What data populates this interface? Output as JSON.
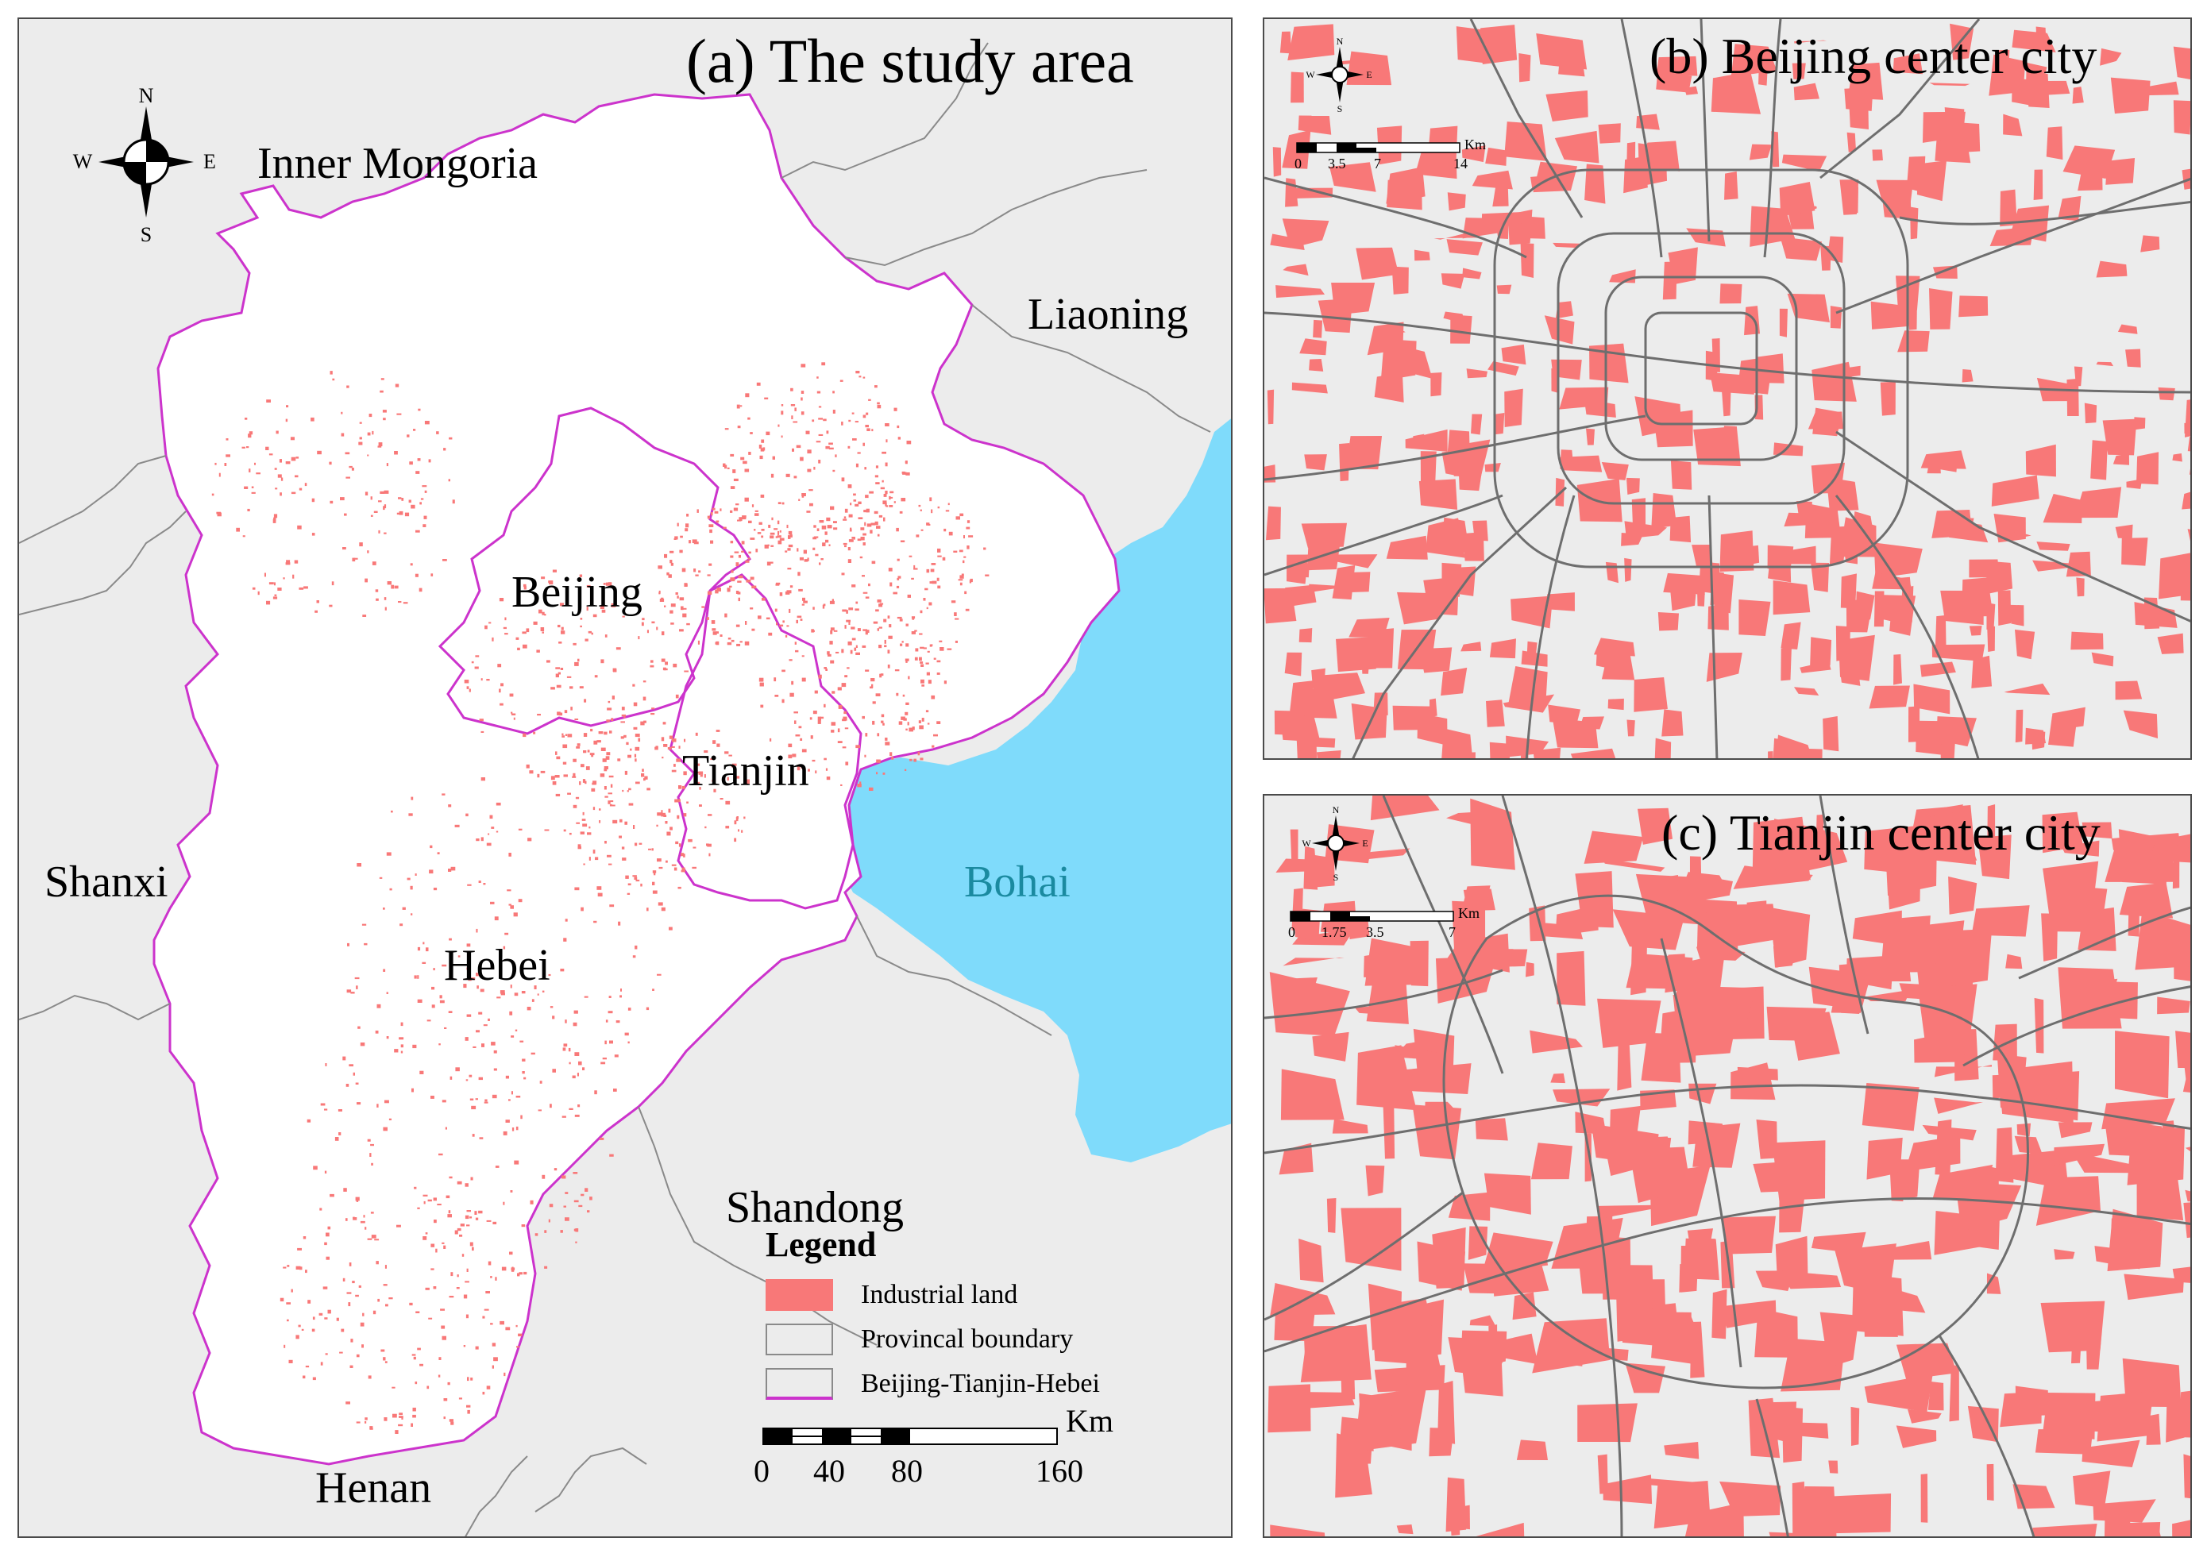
{
  "panel_a": {
    "title": "(a) The study area",
    "labels": {
      "inner_mongolia": "Inner Mongoria",
      "liaoning": "Liaoning",
      "beijing": "Beijing",
      "tianjin": "Tianjin",
      "hebei": "Hebei",
      "shanxi": "Shanxi",
      "bohai": "Bohai",
      "shandong": "Shandong",
      "henan": "Henan"
    },
    "compass": {
      "n": "N",
      "s": "S",
      "e": "E",
      "w": "W"
    },
    "legend": {
      "title": "Legend",
      "items": [
        {
          "label": "Industrial land",
          "color": "#f87878"
        },
        {
          "label": "Provincal boundary",
          "color": "#8a8a8a"
        },
        {
          "label": "Beijing-Tianjin-Hebei",
          "color": "#cc33cc"
        }
      ]
    },
    "scale": {
      "unit": "Km",
      "ticks": [
        "0",
        "40",
        "80",
        "160"
      ]
    }
  },
  "panel_b": {
    "title": "(b)  Beijing center city",
    "compass": {
      "n": "N",
      "s": "S",
      "e": "E",
      "w": "W"
    },
    "scale": {
      "unit": "Km",
      "ticks": [
        "0",
        "3.5",
        "7",
        "14"
      ]
    }
  },
  "panel_c": {
    "title": "(c) Tianjin center city",
    "compass": {
      "n": "N",
      "s": "S",
      "e": "E",
      "w": "W"
    },
    "scale": {
      "unit": "Km",
      "ticks": [
        "0",
        "1.75",
        "3.5",
        "7"
      ]
    }
  },
  "colors": {
    "background": "#ececec",
    "region_fill": "#ffffff",
    "industrial": "#f87878",
    "sea": "#7fdbfb",
    "boundary_jjj": "#cc33cc",
    "boundary_province": "#8a8a8a",
    "roads": "#6e6e6e"
  }
}
